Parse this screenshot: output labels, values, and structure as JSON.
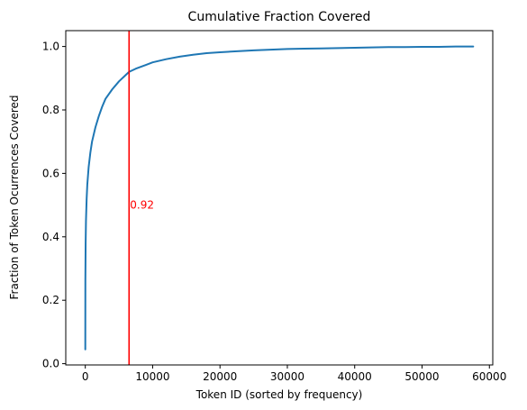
{
  "chart_data": {
    "type": "line",
    "title": "Cumulative Fraction Covered",
    "xlabel": "Token ID (sorted by frequency)",
    "ylabel": "Fraction of Token Ocurrences Covered",
    "xlim": [
      -2900,
      60500
    ],
    "ylim": [
      -0.004,
      1.05
    ],
    "xticks": [
      0,
      10000,
      20000,
      30000,
      40000,
      50000,
      60000
    ],
    "xtick_labels": [
      "0",
      "10000",
      "20000",
      "30000",
      "40000",
      "50000",
      "60000"
    ],
    "yticks": [
      0.0,
      0.2,
      0.4,
      0.6,
      0.8,
      1.0
    ],
    "ytick_labels": [
      "0.0",
      "0.2",
      "0.4",
      "0.6",
      "0.8",
      "1.0"
    ],
    "grid": false,
    "series": [
      {
        "color": "#1f77b4",
        "x": [
          1,
          10,
          50,
          100,
          200,
          300,
          500,
          750,
          1000,
          1500,
          2000,
          2500,
          3000,
          4000,
          5000,
          6000,
          6500,
          7500,
          9000,
          10000,
          12000,
          14000,
          16000,
          18000,
          20000,
          22500,
          25000,
          27500,
          30000,
          32500,
          35000,
          37500,
          40000,
          42500,
          45000,
          47500,
          50000,
          52500,
          55000,
          57600
        ],
        "y": [
          0.045,
          0.26,
          0.38,
          0.45,
          0.52,
          0.565,
          0.62,
          0.665,
          0.7,
          0.745,
          0.78,
          0.81,
          0.835,
          0.865,
          0.89,
          0.91,
          0.92,
          0.93,
          0.942,
          0.95,
          0.96,
          0.968,
          0.974,
          0.979,
          0.982,
          0.985,
          0.988,
          0.99,
          0.992,
          0.993,
          0.994,
          0.995,
          0.996,
          0.997,
          0.998,
          0.998,
          0.999,
          0.999,
          1.0,
          1.0
        ]
      }
    ],
    "vline": {
      "x": 6500,
      "color": "#ff0000"
    },
    "annotation": {
      "text": "0.92",
      "x": 6500,
      "y": 0.5,
      "color": "#ff0000"
    }
  }
}
